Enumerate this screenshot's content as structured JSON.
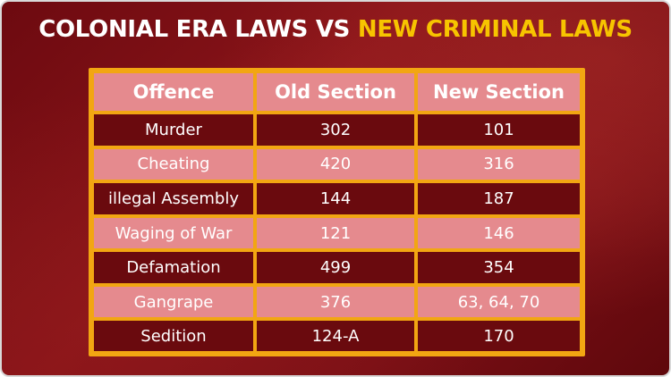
{
  "title": {
    "part1": "COLONIAL ERA LAWS VS ",
    "part2": "NEW CRIMINAL LAWS"
  },
  "table": {
    "headers": [
      "Offence",
      "Old Section",
      "New Section"
    ],
    "rows": [
      {
        "offence": "Murder",
        "old": "302",
        "new": "101"
      },
      {
        "offence": "Cheating",
        "old": "420",
        "new": "316"
      },
      {
        "offence": "illegal Assembly",
        "old": "144",
        "new": "187"
      },
      {
        "offence": "Waging of War",
        "old": "121",
        "new": "146"
      },
      {
        "offence": "Defamation",
        "old": "499",
        "new": "354"
      },
      {
        "offence": "Gangrape",
        "old": "376",
        "new": "63, 64, 70"
      },
      {
        "offence": "Sedition",
        "old": "124-A",
        "new": "170"
      }
    ]
  },
  "colors": {
    "background": "#7a0f15",
    "accent_yellow": "#f7c400",
    "table_border": "#f2a612",
    "row_dark": "#6a0a0e",
    "row_light": "#e58a8e"
  }
}
